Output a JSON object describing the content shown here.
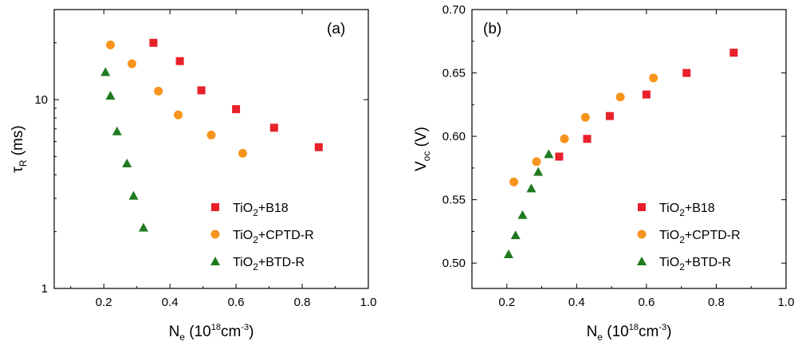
{
  "colors": {
    "TiO2+B18": "#e8202a",
    "TiO2+CPTD-R": "#f7941d",
    "TiO2+BTD-R": "#1f7a1f"
  },
  "legend": [
    {
      "id": "b18",
      "main": "TiO",
      "sub": "2",
      "rest": "+B18",
      "marker": "square"
    },
    {
      "id": "cptd",
      "main": "TiO",
      "sub": "2",
      "rest": "+CPTD-R",
      "marker": "circle"
    },
    {
      "id": "btd",
      "main": "TiO",
      "sub": "2",
      "rest": "+BTD-R",
      "marker": "triangle"
    }
  ],
  "chart_data": [
    {
      "type": "scatter",
      "panel_label": "(a)",
      "xlabel": {
        "main": "N",
        "sub": "e",
        "paren_open": " (10",
        "sup1": "18",
        "mid": "cm",
        "sup2": "-3",
        "paren_close": ")"
      },
      "ylabel": {
        "main": "τ",
        "sub": "R",
        "rest": " (ms)"
      },
      "xlim": [
        0.05,
        1.0
      ],
      "ylim": [
        1,
        30
      ],
      "yscale": "log",
      "xticks": [
        "0.2",
        "0.4",
        "0.6",
        "0.8",
        "1.0"
      ],
      "xtick_values": [
        0.2,
        0.4,
        0.6,
        0.8,
        1.0
      ],
      "yticks": [
        "1",
        "10"
      ],
      "ytick_values": [
        1,
        10
      ],
      "legend_position": "bottom-right",
      "series": [
        {
          "name": "TiO2+B18",
          "marker": "square",
          "x": [
            0.35,
            0.43,
            0.495,
            0.6,
            0.715,
            0.85
          ],
          "y": [
            20.0,
            16.0,
            11.2,
            8.9,
            7.1,
            5.6
          ]
        },
        {
          "name": "TiO2+CPTD-R",
          "marker": "circle",
          "x": [
            0.22,
            0.285,
            0.365,
            0.425,
            0.525,
            0.62
          ],
          "y": [
            19.5,
            15.5,
            11.1,
            8.3,
            6.5,
            5.2
          ]
        },
        {
          "name": "TiO2+BTD-R",
          "marker": "triangle",
          "x": [
            0.205,
            0.22,
            0.24,
            0.27,
            0.29,
            0.32
          ],
          "y": [
            14.0,
            10.5,
            6.8,
            4.6,
            3.1,
            2.1
          ]
        }
      ]
    },
    {
      "type": "scatter",
      "panel_label": "(b)",
      "xlabel": {
        "main": "N",
        "sub": "e",
        "paren_open": " (10",
        "sup1": "18",
        "mid": "cm",
        "sup2": "-3",
        "paren_close": ")"
      },
      "ylabel": {
        "main": "V",
        "sub": "oc",
        "rest": " (V)"
      },
      "xlim": [
        0.1,
        1.0
      ],
      "ylim": [
        0.48,
        0.7
      ],
      "yscale": "linear",
      "xticks": [
        "0.2",
        "0.4",
        "0.6",
        "0.8",
        "1.0"
      ],
      "xtick_values": [
        0.2,
        0.4,
        0.6,
        0.8,
        1.0
      ],
      "yticks": [
        "0.50",
        "0.55",
        "0.60",
        "0.65",
        "0.70"
      ],
      "ytick_values": [
        0.5,
        0.55,
        0.6,
        0.65,
        0.7
      ],
      "legend_position": "bottom-right",
      "series": [
        {
          "name": "TiO2+B18",
          "marker": "square",
          "x": [
            0.35,
            0.43,
            0.495,
            0.6,
            0.715,
            0.85
          ],
          "y": [
            0.584,
            0.598,
            0.616,
            0.633,
            0.65,
            0.666
          ]
        },
        {
          "name": "TiO2+CPTD-R",
          "marker": "circle",
          "x": [
            0.22,
            0.285,
            0.365,
            0.425,
            0.525,
            0.62
          ],
          "y": [
            0.564,
            0.58,
            0.598,
            0.615,
            0.631,
            0.646
          ]
        },
        {
          "name": "TiO2+BTD-R",
          "marker": "triangle",
          "x": [
            0.205,
            0.225,
            0.245,
            0.27,
            0.29,
            0.32
          ],
          "y": [
            0.507,
            0.522,
            0.538,
            0.559,
            0.572,
            0.586
          ]
        }
      ]
    }
  ]
}
